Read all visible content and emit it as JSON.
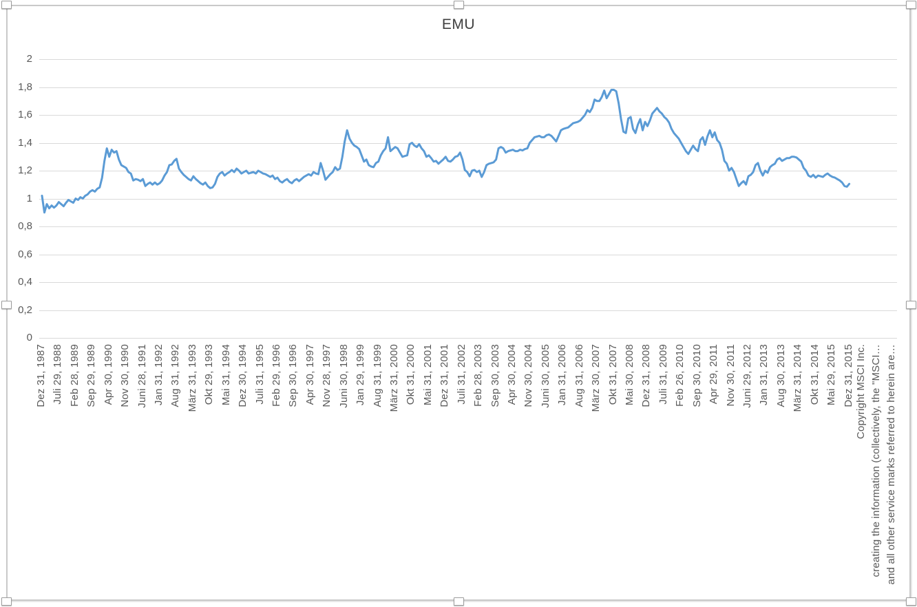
{
  "chart": {
    "title": "EMU",
    "y_axis_labels": [
      "2",
      "1,8",
      "1,6",
      "1,4",
      "1,2",
      "1",
      "0,8",
      "0,6",
      "0,4",
      "0,2",
      "0"
    ],
    "x_axis_labels": [
      "Dez 31, 1987",
      "Juli 29, 1988",
      "Feb 28, 1989",
      "Sep 29, 1989",
      "Apr 30, 1990",
      "Nov 30, 1990",
      "Juni 28, 1991",
      "Jan 31, 1992",
      "Aug 31, 1992",
      "März 31, 1993",
      "Okt 29, 1993",
      "Mai 31, 1994",
      "Dez 30, 1994",
      "Juli 31, 1995",
      "Feb 29, 1996",
      "Sep 30, 1996",
      "Apr 30, 1997",
      "Nov 28, 1997",
      "Juni 30, 1998",
      "Jan 29, 1999",
      "Aug 31, 1999",
      "März 31, 2000",
      "Okt 31, 2000",
      "Mai 31, 2001",
      "Dez 31, 2001",
      "Juli 31, 2002",
      "Feb 28, 2003",
      "Sep 30, 2003",
      "Apr 30, 2004",
      "Nov 30, 2004",
      "Juni 30, 2005",
      "Jan 31, 2006",
      "Aug 31, 2006",
      "März 30, 2007",
      "Okt 31, 2007",
      "Mai 30, 2008",
      "Dez 31, 2008",
      "Juli 31, 2009",
      "Feb 26, 2010",
      "Sep 30, 2010",
      "Apr 29, 2011",
      "Nov 30, 2011",
      "Juni 29, 2012",
      "Jan 31, 2013",
      "Aug 30, 2013",
      "März 31, 2014",
      "Okt 31, 2014",
      "Mai 29, 2015",
      "Dez 31, 2015"
    ],
    "footnotes": [
      "Copyright MSCI Inc.",
      "creating the information (collectively, the \"MSCI…",
      "and all other service marks referred to herein are…"
    ],
    "colors": {
      "line": "#5B9BD5",
      "gridline": "#D9D9D9",
      "axis_text": "#595959",
      "title_text": "#3F3F3F",
      "frame_border": "#C9C9C9",
      "handle_border": "#9D9D9D"
    }
  },
  "chart_data": {
    "type": "line",
    "title": "EMU",
    "start": "Dez 31, 1987",
    "end": "Dez 31, 2015",
    "frequency": "monthly",
    "ylim": [
      0,
      2
    ],
    "y_tick_step": 0.2,
    "x_tick_interval_months": 7,
    "grid": "horizontal",
    "legend": "none",
    "series": [
      {
        "name": "EMU",
        "values": [
          1.02,
          0.9,
          0.96,
          0.93,
          0.95,
          0.935,
          0.95,
          0.975,
          0.96,
          0.945,
          0.97,
          0.99,
          0.98,
          0.97,
          1.0,
          0.99,
          1.01,
          1.0,
          1.02,
          1.03,
          1.05,
          1.06,
          1.05,
          1.07,
          1.08,
          1.15,
          1.27,
          1.36,
          1.3,
          1.35,
          1.33,
          1.34,
          1.28,
          1.24,
          1.23,
          1.22,
          1.19,
          1.18,
          1.13,
          1.14,
          1.135,
          1.125,
          1.14,
          1.09,
          1.105,
          1.115,
          1.1,
          1.115,
          1.1,
          1.11,
          1.13,
          1.165,
          1.19,
          1.24,
          1.245,
          1.27,
          1.285,
          1.215,
          1.19,
          1.17,
          1.155,
          1.14,
          1.13,
          1.16,
          1.14,
          1.125,
          1.11,
          1.1,
          1.115,
          1.09,
          1.075,
          1.08,
          1.105,
          1.155,
          1.18,
          1.19,
          1.165,
          1.18,
          1.19,
          1.205,
          1.19,
          1.215,
          1.2,
          1.18,
          1.19,
          1.2,
          1.18,
          1.185,
          1.19,
          1.18,
          1.2,
          1.19,
          1.18,
          1.175,
          1.165,
          1.155,
          1.165,
          1.14,
          1.15,
          1.125,
          1.115,
          1.13,
          1.14,
          1.12,
          1.11,
          1.13,
          1.14,
          1.125,
          1.14,
          1.155,
          1.165,
          1.175,
          1.165,
          1.19,
          1.18,
          1.175,
          1.255,
          1.2,
          1.135,
          1.155,
          1.175,
          1.19,
          1.225,
          1.205,
          1.215,
          1.3,
          1.41,
          1.49,
          1.43,
          1.4,
          1.38,
          1.37,
          1.355,
          1.31,
          1.265,
          1.28,
          1.24,
          1.23,
          1.225,
          1.255,
          1.265,
          1.31,
          1.34,
          1.36,
          1.44,
          1.34,
          1.355,
          1.37,
          1.36,
          1.33,
          1.3,
          1.305,
          1.31,
          1.39,
          1.4,
          1.38,
          1.37,
          1.39,
          1.36,
          1.34,
          1.3,
          1.31,
          1.29,
          1.265,
          1.27,
          1.25,
          1.265,
          1.28,
          1.3,
          1.27,
          1.265,
          1.28,
          1.3,
          1.305,
          1.33,
          1.28,
          1.205,
          1.19,
          1.16,
          1.2,
          1.205,
          1.19,
          1.2,
          1.155,
          1.19,
          1.24,
          1.25,
          1.255,
          1.26,
          1.28,
          1.36,
          1.37,
          1.36,
          1.33,
          1.34,
          1.345,
          1.35,
          1.34,
          1.34,
          1.35,
          1.345,
          1.355,
          1.36,
          1.4,
          1.42,
          1.44,
          1.445,
          1.45,
          1.44,
          1.44,
          1.455,
          1.46,
          1.45,
          1.43,
          1.41,
          1.45,
          1.49,
          1.5,
          1.505,
          1.51,
          1.525,
          1.54,
          1.545,
          1.55,
          1.56,
          1.58,
          1.6,
          1.635,
          1.62,
          1.65,
          1.71,
          1.7,
          1.7,
          1.73,
          1.775,
          1.72,
          1.75,
          1.78,
          1.78,
          1.77,
          1.685,
          1.57,
          1.48,
          1.47,
          1.575,
          1.585,
          1.5,
          1.47,
          1.53,
          1.57,
          1.49,
          1.55,
          1.52,
          1.56,
          1.61,
          1.63,
          1.65,
          1.625,
          1.61,
          1.585,
          1.57,
          1.545,
          1.5,
          1.47,
          1.45,
          1.43,
          1.4,
          1.37,
          1.34,
          1.32,
          1.35,
          1.38,
          1.355,
          1.34,
          1.42,
          1.44,
          1.385,
          1.447,
          1.49,
          1.44,
          1.475,
          1.42,
          1.4,
          1.35,
          1.27,
          1.25,
          1.2,
          1.22,
          1.19,
          1.14,
          1.09,
          1.11,
          1.125,
          1.1,
          1.16,
          1.17,
          1.19,
          1.24,
          1.255,
          1.2,
          1.165,
          1.2,
          1.185,
          1.225,
          1.24,
          1.25,
          1.28,
          1.29,
          1.27,
          1.28,
          1.29,
          1.29,
          1.3,
          1.3,
          1.295,
          1.28,
          1.265,
          1.22,
          1.2,
          1.165,
          1.155,
          1.17,
          1.15,
          1.165,
          1.16,
          1.155,
          1.17,
          1.18,
          1.165,
          1.155,
          1.15,
          1.14,
          1.13,
          1.115,
          1.09,
          1.085,
          1.105
        ]
      }
    ]
  }
}
